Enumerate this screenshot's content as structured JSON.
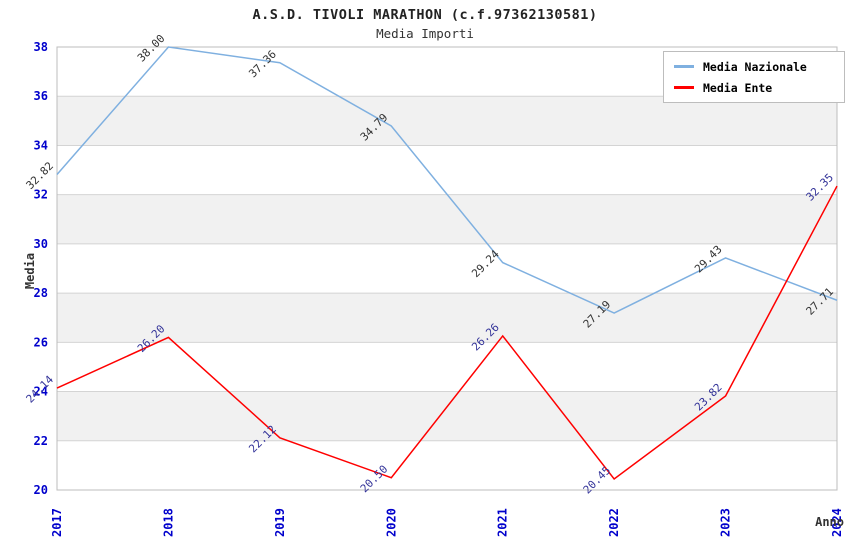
{
  "header": {
    "title": "A.S.D. TIVOLI MARATHON (c.f.97362130581)",
    "subtitle": "Media Importi"
  },
  "axes": {
    "ylabel": "Media",
    "xlabel": "Anno"
  },
  "legend": {
    "position": "top-right",
    "items": [
      {
        "label": "Media Nazionale",
        "color": "#7fb0e0"
      },
      {
        "label": "Media Ente",
        "color": "#ff0000"
      }
    ]
  },
  "chart_data": {
    "type": "line",
    "title": "A.S.D. TIVOLI MARATHON (c.f.97362130581)",
    "subtitle": "Media Importi",
    "xlabel": "Anno",
    "ylabel": "Media",
    "categories": [
      "2017",
      "2018",
      "2019",
      "2020",
      "2021",
      "2022",
      "2023",
      "2024"
    ],
    "series": [
      {
        "name": "Media Nazionale",
        "color": "#7fb0e0",
        "label_color": "#333333",
        "values": [
          32.82,
          38.0,
          37.36,
          34.79,
          29.24,
          27.19,
          29.43,
          27.71
        ]
      },
      {
        "name": "Media Ente",
        "color": "#ff0000",
        "label_color": "#333399",
        "values": [
          24.14,
          26.2,
          22.12,
          20.5,
          26.26,
          20.45,
          23.82,
          32.35
        ]
      }
    ],
    "ylim": [
      20,
      38
    ],
    "ytick_step": 2,
    "grid": true,
    "band_shading": true,
    "legend_position": "top-right",
    "theme": {
      "tick_label_color": "#0000cc",
      "grid_color": "#d4d4d4",
      "band_color": "#f1f1f1",
      "border_color": "#bdbdbd",
      "background": "#ffffff"
    }
  }
}
